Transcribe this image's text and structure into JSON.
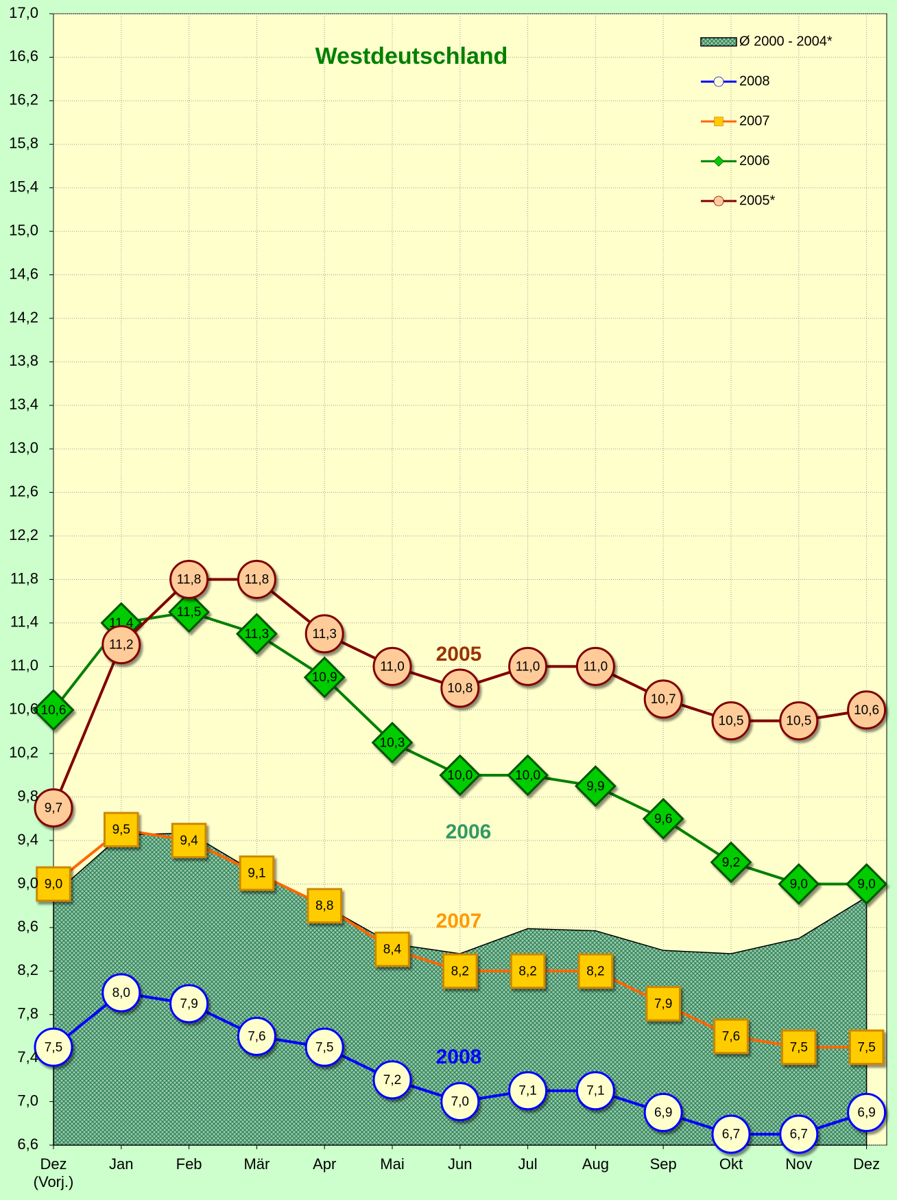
{
  "chart_data": {
    "type": "line",
    "title": "Westdeutschland",
    "categories": [
      "Dez\n(Vorj.)",
      "Jan",
      "Feb",
      "Mär",
      "Apr",
      "Mai",
      "Jun",
      "Jul",
      "Aug",
      "Sep",
      "Okt",
      "Nov",
      "Dez"
    ],
    "ylim": [
      6.6,
      17.0
    ],
    "yticks": [
      {
        "value": 6.6,
        "label": "6,6"
      },
      {
        "value": 7.0,
        "label": "7,0"
      },
      {
        "value": 7.4,
        "label": "7,4"
      },
      {
        "value": 7.8,
        "label": "7,8"
      },
      {
        "value": 8.2,
        "label": "8,2"
      },
      {
        "value": 8.6,
        "label": "8,6"
      },
      {
        "value": 9.0,
        "label": "9,0"
      },
      {
        "value": 9.4,
        "label": "9,4"
      },
      {
        "value": 9.8,
        "label": "9,8"
      },
      {
        "value": 10.2,
        "label": "10,2"
      },
      {
        "value": 10.6,
        "label": "10,6"
      },
      {
        "value": 11.0,
        "label": "11,0"
      },
      {
        "value": 11.4,
        "label": "11,4"
      },
      {
        "value": 11.8,
        "label": "11,8"
      },
      {
        "value": 12.2,
        "label": "12,2"
      },
      {
        "value": 12.6,
        "label": "12,6"
      },
      {
        "value": 13.0,
        "label": "13,0"
      },
      {
        "value": 13.4,
        "label": "13,4"
      },
      {
        "value": 13.8,
        "label": "13,8"
      },
      {
        "value": 14.2,
        "label": "14,2"
      },
      {
        "value": 14.6,
        "label": "14,6"
      },
      {
        "value": 15.0,
        "label": "15,0"
      },
      {
        "value": 15.4,
        "label": "15,4"
      },
      {
        "value": 15.8,
        "label": "15,8"
      },
      {
        "value": 16.2,
        "label": "16,2"
      },
      {
        "value": 16.6,
        "label": "16,6"
      },
      {
        "value": 17.0,
        "label": "17,0"
      }
    ],
    "grid": true,
    "legend": "top-right",
    "series": [
      {
        "name": "Ø 2000 - 2004*",
        "kind": "area",
        "color": "#339966",
        "values": [
          8.9,
          9.45,
          9.47,
          9.1,
          8.8,
          8.45,
          8.36,
          8.59,
          8.57,
          8.39,
          8.36,
          8.5,
          8.88
        ]
      },
      {
        "name": "2008",
        "kind": "circle",
        "color": "#0000ff",
        "marker_fill": "#ffffcc",
        "values": [
          7.5,
          8.0,
          7.9,
          7.6,
          7.5,
          7.2,
          7.0,
          7.1,
          7.1,
          6.9,
          6.7,
          6.7,
          6.9
        ],
        "value_labels": [
          "7,5",
          "8,0",
          "7,9",
          "7,6",
          "7,5",
          "7,2",
          "7,0",
          "7,1",
          "7,1",
          "6,9",
          "6,7",
          "6,7",
          "6,9"
        ]
      },
      {
        "name": "2007",
        "kind": "square",
        "color": "#ff6600",
        "marker_fill": "#ffcc00",
        "values": [
          9.0,
          9.5,
          9.4,
          9.1,
          8.8,
          8.4,
          8.2,
          8.2,
          8.2,
          7.9,
          7.6,
          7.5,
          7.5
        ],
        "value_labels": [
          "9,0",
          "9,5",
          "9,4",
          "9,1",
          "8,8",
          "8,4",
          "8,2",
          "8,2",
          "8,2",
          "7,9",
          "7,6",
          "7,5",
          "7,5"
        ]
      },
      {
        "name": "2006",
        "kind": "diamond",
        "color": "#008000",
        "marker_fill": "#00cc00",
        "values": [
          10.6,
          11.4,
          11.5,
          11.3,
          10.9,
          10.3,
          10.0,
          10.0,
          9.9,
          9.6,
          9.2,
          9.0,
          9.0
        ],
        "value_labels": [
          "10,6",
          "11,4",
          "11,5",
          "11,3",
          "10,9",
          "10,3",
          "10,0",
          "10,0",
          "9,9",
          "9,6",
          "9,2",
          "9,0",
          "9,0"
        ]
      },
      {
        "name": "2005*",
        "kind": "circle",
        "color": "#800000",
        "marker_fill": "#ffcc99",
        "values": [
          9.7,
          11.2,
          11.8,
          11.8,
          11.3,
          11.0,
          10.8,
          11.0,
          11.0,
          10.7,
          10.5,
          10.5,
          10.6
        ],
        "value_labels": [
          "9,7",
          "11,2",
          "11,8",
          "11,8",
          "11,3",
          "11,0",
          "10,8",
          "11,0",
          "11,0",
          "10,7",
          "10,5",
          "10,5",
          "10,6"
        ]
      }
    ],
    "annotations": [
      {
        "text": "2005",
        "color": "#993300"
      },
      {
        "text": "2006",
        "color": "#339966"
      },
      {
        "text": "2007",
        "color": "#ff9900"
      },
      {
        "text": "2008",
        "color": "#0000ff"
      }
    ]
  }
}
